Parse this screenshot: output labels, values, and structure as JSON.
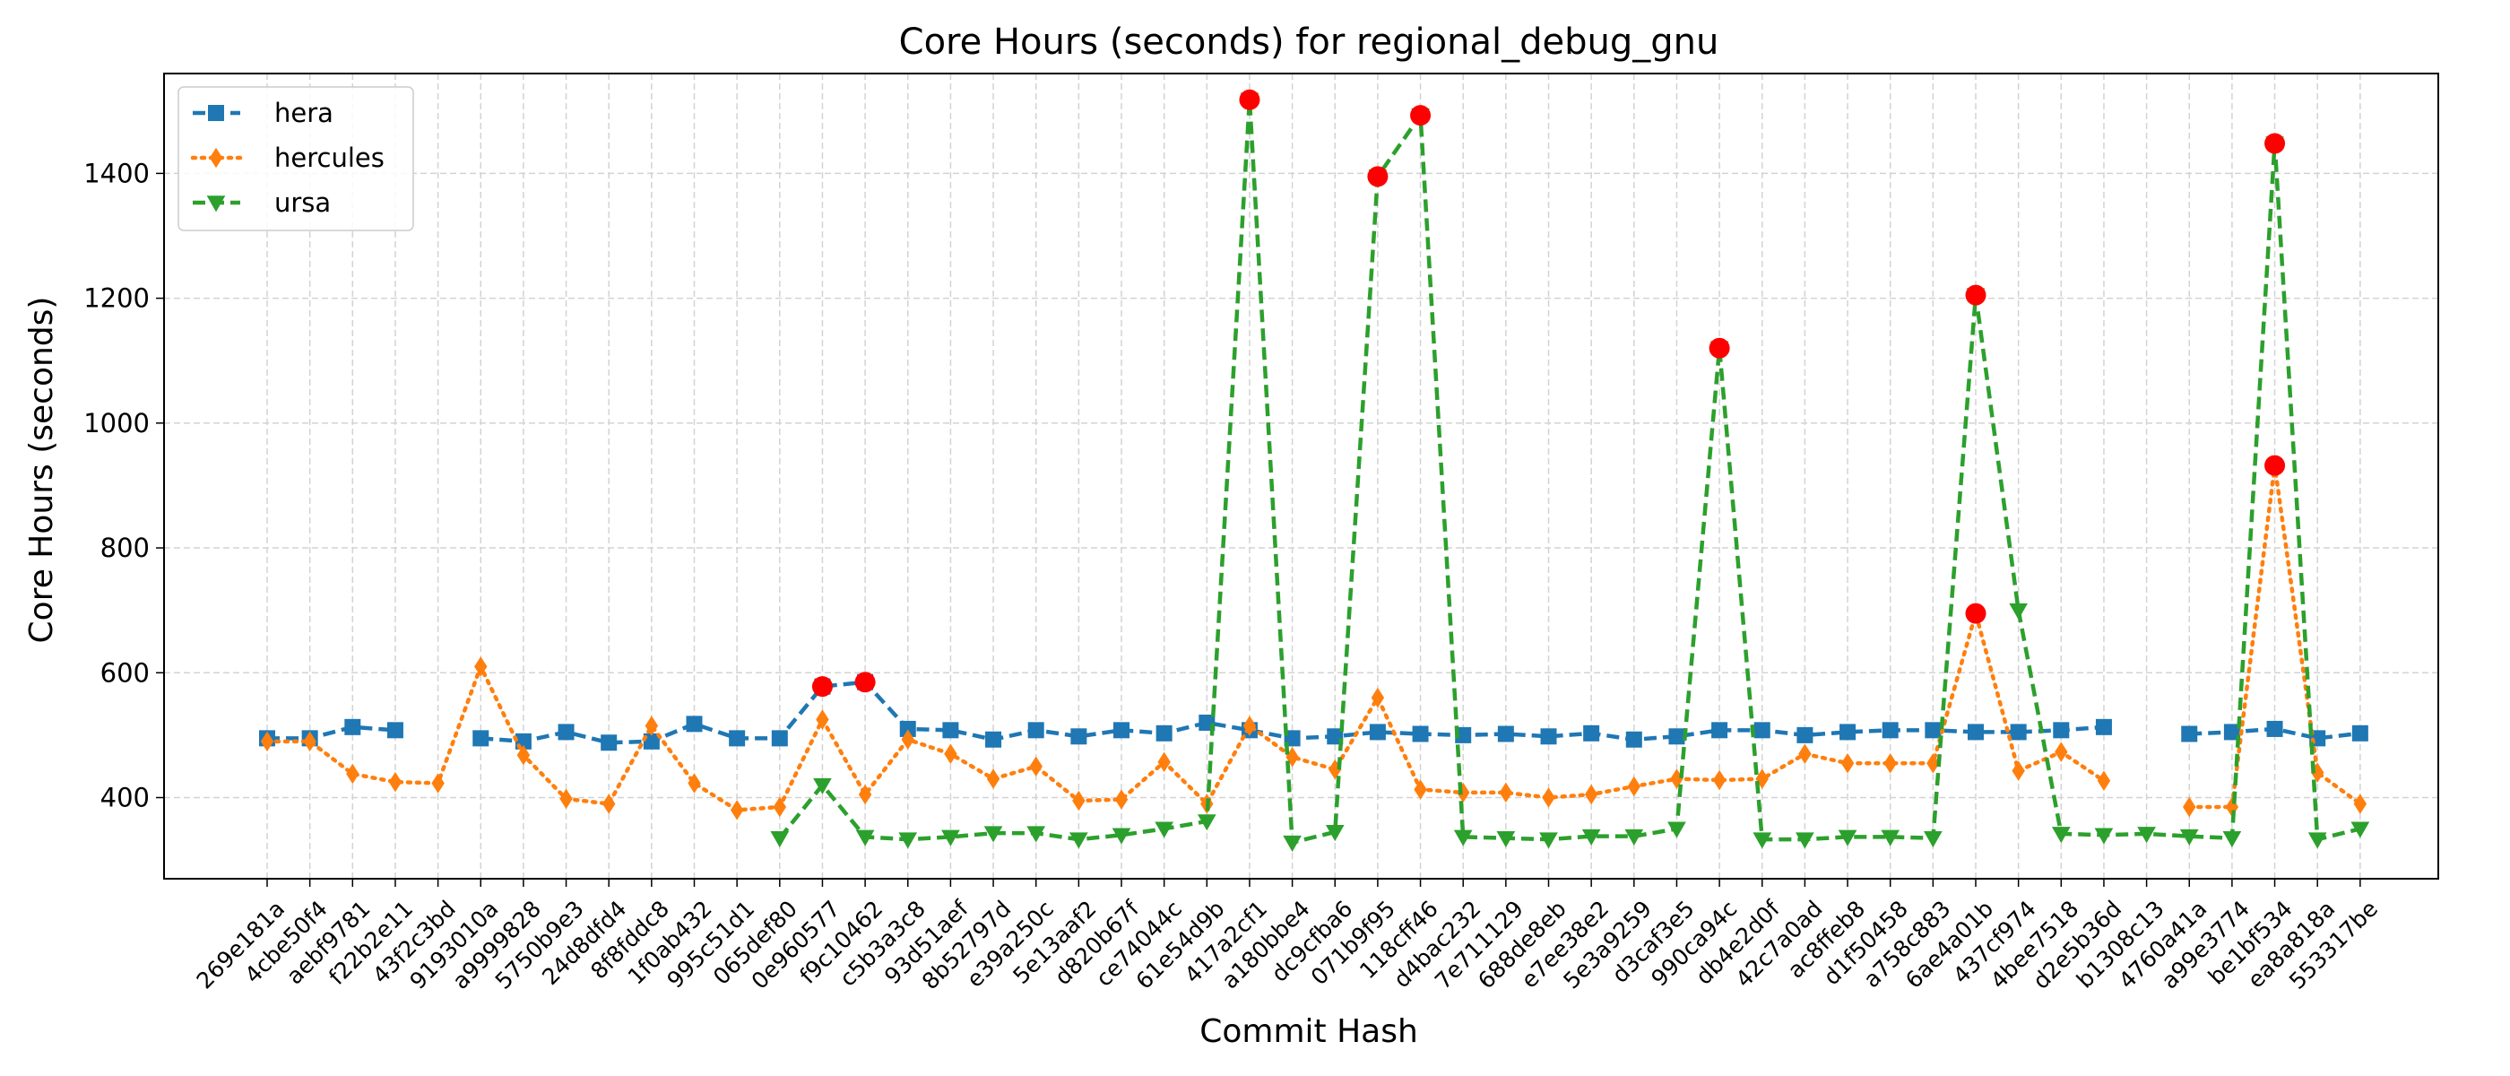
{
  "chart_data": {
    "type": "line",
    "title": "Core Hours (seconds) for regional_debug_gnu",
    "xlabel": "Commit Hash",
    "ylabel": "Core Hours (seconds)",
    "ylim": [
      270,
      1560
    ],
    "yticks": [
      400,
      600,
      800,
      1000,
      1200,
      1400
    ],
    "grid": true,
    "legend_position": "top-left",
    "categories": [
      "269e181a",
      "4cbe50f4",
      "aebf9781",
      "f22b2e11",
      "43f2c3bd",
      "9193010a",
      "a9999828",
      "5750b9e3",
      "24d8dfd4",
      "8f8fddc8",
      "1f0ab432",
      "995c51d1",
      "065def80",
      "0e960577",
      "f9c10462",
      "c5b3a3c8",
      "93d51aef",
      "8b52797d",
      "e39a250c",
      "5e13aaf2",
      "d820b67f",
      "ce74044c",
      "61e54d9b",
      "417a2cf1",
      "a180bbe4",
      "dc9cfba6",
      "071b9f95",
      "118cff46",
      "d4bac232",
      "7e711129",
      "688de8eb",
      "e7ee38e2",
      "5e3a9259",
      "d3caf3e5",
      "990ca94c",
      "db4e2d0f",
      "42c7a0ad",
      "ac8ffeb8",
      "d1f50458",
      "a758c883",
      "6ae4a01b",
      "437cf974",
      "4bee7518",
      "d2e5b36d",
      "b1308c13",
      "4760a41a",
      "a99e3774",
      "be1bf534",
      "ea8a818a",
      "553317be"
    ],
    "series": [
      {
        "name": "hera",
        "color": "#1f77b4",
        "marker": "square",
        "dash": "dashed",
        "values": [
          495,
          495,
          513,
          508,
          null,
          495,
          490,
          505,
          488,
          490,
          518,
          495,
          495,
          578,
          585,
          510,
          508,
          493,
          508,
          498,
          508,
          503,
          520,
          508,
          495,
          498,
          505,
          502,
          500,
          502,
          498,
          503,
          493,
          498,
          508,
          508,
          500,
          505,
          508,
          508,
          505,
          505,
          508,
          513,
          null,
          502,
          505,
          510,
          495,
          503
        ]
      },
      {
        "name": "hercules",
        "color": "#ff7f0e",
        "marker": "diamond",
        "dash": "dotted",
        "values": [
          490,
          490,
          438,
          425,
          423,
          610,
          468,
          398,
          390,
          515,
          423,
          380,
          385,
          525,
          405,
          493,
          470,
          430,
          450,
          395,
          397,
          457,
          390,
          515,
          465,
          445,
          560,
          413,
          408,
          408,
          400,
          405,
          418,
          430,
          428,
          430,
          470,
          455,
          455,
          455,
          695,
          443,
          473,
          427,
          null,
          385,
          385,
          932,
          440,
          390
        ]
      },
      {
        "name": "ursa",
        "color": "#2ca02c",
        "marker": "triangle-down",
        "dash": "dashed",
        "values": [
          null,
          null,
          null,
          null,
          null,
          null,
          null,
          null,
          null,
          null,
          null,
          null,
          335,
          420,
          337,
          333,
          337,
          343,
          343,
          333,
          340,
          350,
          362,
          1518,
          328,
          345,
          1395,
          1493,
          337,
          335,
          333,
          338,
          338,
          350,
          1120,
          333,
          333,
          337,
          337,
          335,
          1205,
          700,
          342,
          340,
          342,
          338,
          335,
          1448,
          333,
          350
        ]
      }
    ],
    "outliers": [
      {
        "category": "0e960577",
        "value": 578
      },
      {
        "category": "f9c10462",
        "value": 585
      },
      {
        "category": "417a2cf1",
        "value": 1518
      },
      {
        "category": "071b9f95",
        "value": 1395
      },
      {
        "category": "118cff46",
        "value": 1493
      },
      {
        "category": "990ca94c",
        "value": 1120
      },
      {
        "category": "6ae4a01b",
        "value": 1205
      },
      {
        "category": "6ae4a01b",
        "value": 695
      },
      {
        "category": "be1bf534",
        "value": 1448
      },
      {
        "category": "be1bf534",
        "value": 932
      }
    ],
    "outlier_color": "#ff0000"
  }
}
